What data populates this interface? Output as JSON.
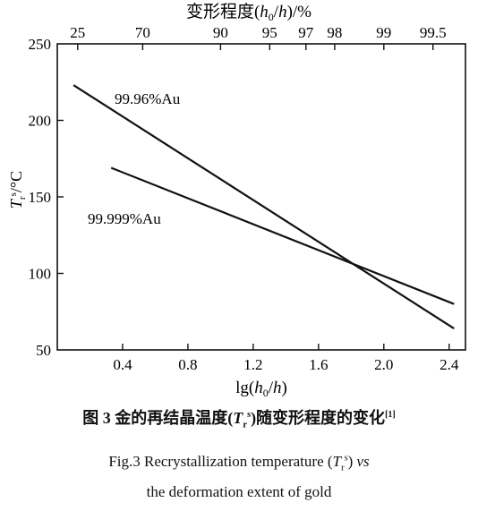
{
  "chart_data": {
    "type": "line",
    "top_axis_label_parts": [
      "变形程度(",
      "h",
      "0",
      "/",
      "h",
      ")/%"
    ],
    "top_ticks": [
      "25",
      "70",
      "90",
      "95",
      "97",
      "98",
      "99",
      "99.5"
    ],
    "top_tick_lg": [
      0.125,
      0.523,
      1.0,
      1.301,
      1.523,
      1.699,
      2.0,
      2.301
    ],
    "x_axis_label_parts": [
      "lg(",
      "h",
      "0",
      "/",
      "h",
      ")"
    ],
    "y_axis_label_parts": [
      "T",
      "r",
      "s",
      "/°C"
    ],
    "xlim": [
      0.0,
      2.5
    ],
    "ylim": [
      50,
      250
    ],
    "xticks": [
      0.4,
      0.8,
      1.2,
      1.6,
      2.0,
      2.4
    ],
    "xtick_labels": [
      "0.4",
      "0.8",
      "1.2",
      "1.6",
      "2.0",
      "2.4"
    ],
    "yticks": [
      50,
      100,
      150,
      200,
      250
    ],
    "ytick_labels": [
      "50",
      "100",
      "150",
      "200",
      "250"
    ],
    "series": [
      {
        "name": "99.96%Au",
        "x": [
          0.1,
          2.43
        ],
        "y": [
          223,
          64
        ]
      },
      {
        "name": "99.999%Au",
        "x": [
          0.33,
          2.43
        ],
        "y": [
          169,
          80
        ]
      }
    ],
    "caption_zh": {
      "pre": "图 3  金的再结晶温度(",
      "T": "T",
      "sub": "r",
      "sup": "s",
      "post": ")随变形程度的变化",
      "ref": "[1]"
    },
    "caption_en_line1": {
      "pre": "Fig.3 Recrystallization temperature (",
      "T": "T",
      "sub": "r",
      "sup": "s",
      "post": ") ",
      "vs": "vs"
    },
    "caption_en_line2": "the deformation extent of gold"
  }
}
